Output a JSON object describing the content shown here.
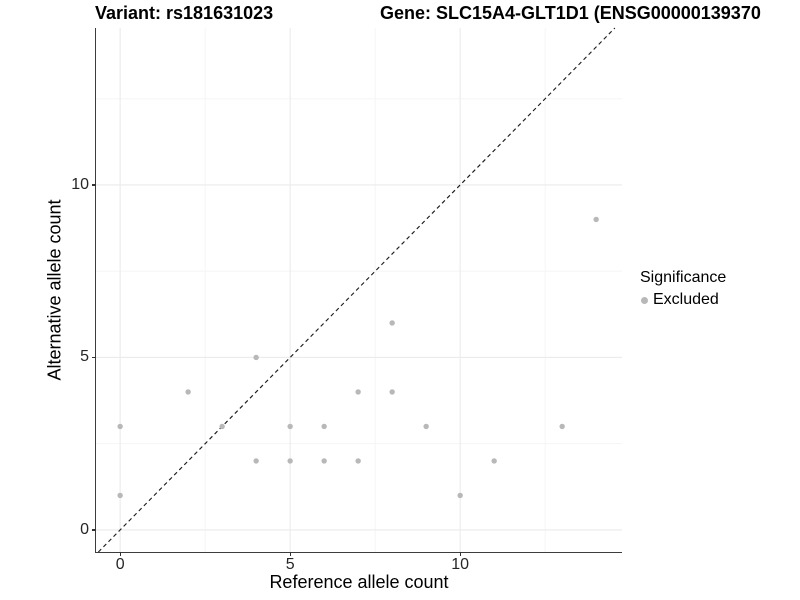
{
  "figure": {
    "title_left": "Variant: rs181631023",
    "title_right": "Gene: SLC15A4-GLT1D1 (ENSG00000139370"
  },
  "chart_data": {
    "type": "scatter",
    "title": "Variant: rs181631023",
    "title_right": "Gene: SLC15A4-GLT1D1 (ENSG00000139370",
    "xlabel": "Reference allele count",
    "ylabel": "Alternative allele count",
    "xlim": [
      -0.71,
      14.76
    ],
    "ylim": [
      -0.64,
      14.55
    ],
    "x_major_ticks": [
      0,
      5,
      10
    ],
    "y_major_ticks": [
      0,
      5,
      10
    ],
    "x_minor_gridlines": [
      2.5,
      7.5,
      12.5
    ],
    "y_minor_gridlines": [
      2.5,
      7.5,
      12.5
    ],
    "grid": true,
    "legend_position": "right",
    "series": [
      {
        "name": "Excluded",
        "marker": "circle",
        "color": "#b8b8b8",
        "points": [
          [
            0,
            1
          ],
          [
            0,
            3
          ],
          [
            2,
            4
          ],
          [
            3,
            3
          ],
          [
            4,
            2
          ],
          [
            4,
            5
          ],
          [
            5,
            2
          ],
          [
            5,
            3
          ],
          [
            6,
            2
          ],
          [
            6,
            3
          ],
          [
            7,
            2
          ],
          [
            7,
            4
          ],
          [
            8,
            4
          ],
          [
            8,
            6
          ],
          [
            9,
            3
          ],
          [
            10,
            1
          ],
          [
            11,
            2
          ],
          [
            13,
            3
          ],
          [
            14,
            9
          ]
        ]
      }
    ],
    "reference_line": {
      "kind": "identity",
      "slope": 1,
      "intercept": 0,
      "style": "dashed",
      "color": "#1c1c1c"
    },
    "legend": {
      "title": "Significance",
      "items": [
        {
          "label": "Excluded",
          "color": "#b8b8b8",
          "marker": "circle"
        }
      ]
    },
    "colors": {
      "point": "#b8b8b8",
      "grid_major": "#ebebeb",
      "grid_minor": "#f5f5f5",
      "axis_line": "#3c3c3c",
      "tick_text": "#262626",
      "background": "#ffffff"
    }
  }
}
